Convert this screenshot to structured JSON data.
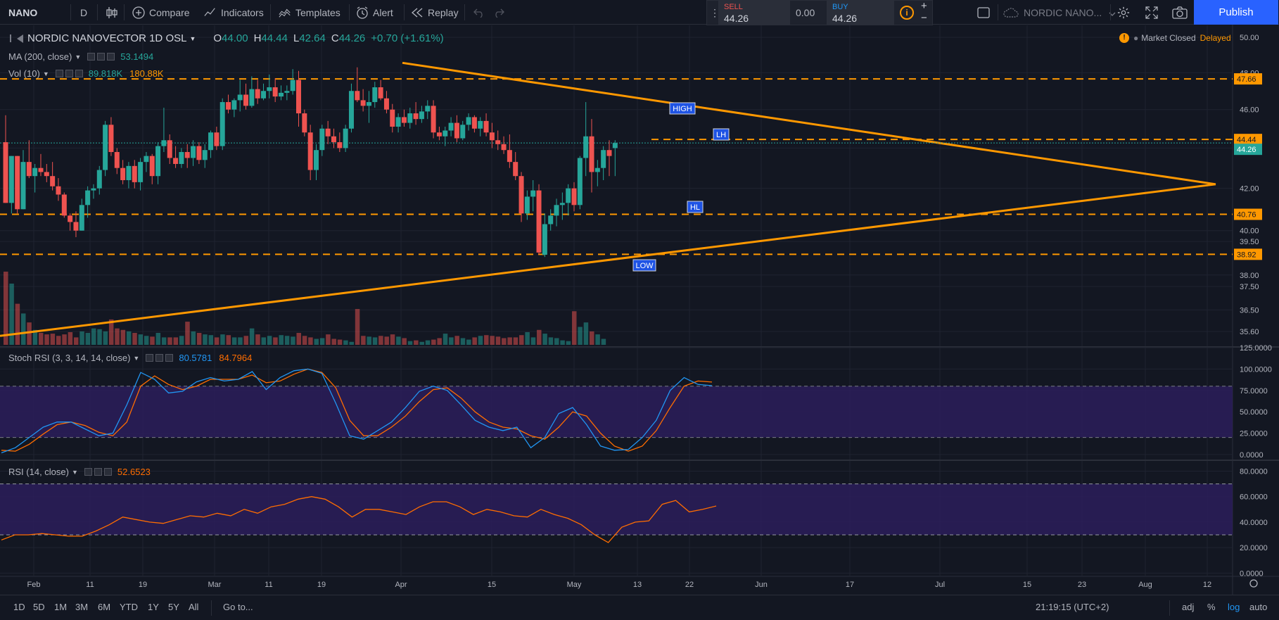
{
  "toolbar": {
    "symbol": "NANO",
    "interval": "D",
    "compare_label": "Compare",
    "indicators_label": "Indicators",
    "templates_label": "Templates",
    "alert_label": "Alert",
    "replay_label": "Replay",
    "sell_label": "SELL",
    "sell_price": "44.26",
    "spread": "0.00",
    "buy_label": "BUY",
    "buy_price": "44.26",
    "info_icon": "i",
    "plus": "+",
    "minus": "−",
    "layout_name": "NORDIC NANO...",
    "publish_label": "Publish",
    "icons": [
      "bar-style-icon",
      "compare-icon",
      "indicators-icon",
      "templates-icon",
      "alert-icon",
      "replay-icon",
      "undo-icon",
      "redo-icon",
      "drag-icon",
      "info-icon",
      "layout-icon",
      "cloud-icon",
      "gear-icon",
      "fullscreen-icon",
      "camera-icon"
    ]
  },
  "legend": {
    "name": "NORDIC NANOVECTOR",
    "interval": "1D",
    "exchange": "OSL",
    "o_label": "O",
    "o": "44.00",
    "h_label": "H",
    "h": "44.44",
    "l_label": "L",
    "l": "42.64",
    "c_label": "C",
    "c": "44.26",
    "change": "+0.70 (+1.61%)",
    "ma_label": "MA (200, close)",
    "ma_value": "53.1494",
    "vol_label": "Vol (10)",
    "vol_value1": "89.818K",
    "vol_value2": "180.88K",
    "stoch_label": "Stoch RSI (3, 3, 14, 14, close)",
    "stoch_k": "80.5781",
    "stoch_d": "84.7964",
    "rsi_label": "RSI (14, close)",
    "rsi_value": "52.6523",
    "market_warn": "!",
    "market_closed": "Market Closed",
    "delayed": "Delayed"
  },
  "colors": {
    "background": "#131722",
    "up": "#26a69a",
    "down": "#ef5350",
    "orange": "#ff9800",
    "stoch_k": "#2196f3",
    "stoch_d": "#ff6d00",
    "band": "#2b1d5a",
    "grid": "#1f2330",
    "axis_text": "#b2b5be"
  },
  "chart_data": [
    {
      "type": "candlestick",
      "name": "NORDIC NANOVECTOR 1D OSL",
      "yscale": "log",
      "ylim": [
        35.0,
        50.7
      ],
      "y_ticks": [
        "50.00",
        "48.00",
        "46.00",
        "44.00",
        "42.00",
        "40.00",
        "39.50",
        "38.00",
        "37.50",
        "36.50",
        "35.60"
      ],
      "x_ticks": [
        "Feb",
        "11",
        "19",
        "Mar",
        "11",
        "19",
        "Apr",
        "15",
        "May",
        "13",
        "22",
        "Jun",
        "17",
        "Jul",
        "15",
        "23",
        "Aug",
        "12"
      ],
      "candles": [
        {
          "o": 44.3,
          "h": 45.7,
          "l": 41.3,
          "c": 41.3
        },
        {
          "o": 41.3,
          "h": 43.6,
          "l": 40.8,
          "c": 43.6
        },
        {
          "o": 43.6,
          "h": 43.6,
          "l": 40.8,
          "c": 41.0
        },
        {
          "o": 41.0,
          "h": 43.9,
          "l": 41.0,
          "c": 43.3
        },
        {
          "o": 43.3,
          "h": 44.4,
          "l": 42.5,
          "c": 42.6
        },
        {
          "o": 42.6,
          "h": 43.2,
          "l": 41.8,
          "c": 43.0
        },
        {
          "o": 43.0,
          "h": 43.7,
          "l": 42.6,
          "c": 42.8
        },
        {
          "o": 42.8,
          "h": 43.2,
          "l": 42.3,
          "c": 42.6
        },
        {
          "o": 42.6,
          "h": 43.3,
          "l": 41.9,
          "c": 42.1
        },
        {
          "o": 42.1,
          "h": 42.5,
          "l": 41.4,
          "c": 41.7
        },
        {
          "o": 41.7,
          "h": 41.8,
          "l": 40.6,
          "c": 40.7
        },
        {
          "o": 40.7,
          "h": 40.8,
          "l": 40.0,
          "c": 40.4
        },
        {
          "o": 40.4,
          "h": 40.9,
          "l": 39.7,
          "c": 40.0
        },
        {
          "o": 40.0,
          "h": 41.5,
          "l": 40.0,
          "c": 41.2
        },
        {
          "o": 41.2,
          "h": 42.1,
          "l": 40.6,
          "c": 41.9
        },
        {
          "o": 41.9,
          "h": 42.2,
          "l": 41.5,
          "c": 42.0
        },
        {
          "o": 42.0,
          "h": 43.1,
          "l": 41.7,
          "c": 42.9
        },
        {
          "o": 42.9,
          "h": 45.4,
          "l": 42.6,
          "c": 45.2
        },
        {
          "o": 45.2,
          "h": 45.6,
          "l": 43.6,
          "c": 43.8
        },
        {
          "o": 43.8,
          "h": 44.0,
          "l": 42.7,
          "c": 43.0
        },
        {
          "o": 43.0,
          "h": 43.4,
          "l": 42.2,
          "c": 42.4
        },
        {
          "o": 42.4,
          "h": 43.3,
          "l": 42.0,
          "c": 43.1
        },
        {
          "o": 43.1,
          "h": 43.4,
          "l": 42.0,
          "c": 42.3
        },
        {
          "o": 42.3,
          "h": 43.5,
          "l": 41.9,
          "c": 43.3
        },
        {
          "o": 43.3,
          "h": 43.8,
          "l": 42.8,
          "c": 43.6
        },
        {
          "o": 43.6,
          "h": 43.7,
          "l": 42.2,
          "c": 42.6
        },
        {
          "o": 42.6,
          "h": 44.3,
          "l": 42.2,
          "c": 44.1
        },
        {
          "o": 44.1,
          "h": 46.1,
          "l": 43.8,
          "c": 44.4
        },
        {
          "o": 44.4,
          "h": 44.7,
          "l": 43.2,
          "c": 43.5
        },
        {
          "o": 43.5,
          "h": 44.1,
          "l": 43.0,
          "c": 43.2
        },
        {
          "o": 43.2,
          "h": 44.0,
          "l": 43.0,
          "c": 43.8
        },
        {
          "o": 43.8,
          "h": 44.2,
          "l": 43.0,
          "c": 43.5
        },
        {
          "o": 43.5,
          "h": 44.4,
          "l": 43.1,
          "c": 44.1
        },
        {
          "o": 44.1,
          "h": 44.3,
          "l": 43.2,
          "c": 43.4
        },
        {
          "o": 43.4,
          "h": 44.2,
          "l": 43.0,
          "c": 43.9
        },
        {
          "o": 43.9,
          "h": 44.9,
          "l": 43.5,
          "c": 44.8
        },
        {
          "o": 44.8,
          "h": 45.1,
          "l": 43.9,
          "c": 44.1
        },
        {
          "o": 44.1,
          "h": 46.6,
          "l": 43.9,
          "c": 46.4
        },
        {
          "o": 46.4,
          "h": 46.8,
          "l": 45.8,
          "c": 46.0
        },
        {
          "o": 46.0,
          "h": 46.6,
          "l": 45.6,
          "c": 46.5
        },
        {
          "o": 46.5,
          "h": 47.6,
          "l": 45.9,
          "c": 46.8
        },
        {
          "o": 46.8,
          "h": 47.4,
          "l": 46.0,
          "c": 46.2
        },
        {
          "o": 46.2,
          "h": 47.8,
          "l": 46.1,
          "c": 47.1
        },
        {
          "o": 47.1,
          "h": 47.6,
          "l": 46.3,
          "c": 46.6
        },
        {
          "o": 46.6,
          "h": 47.4,
          "l": 46.5,
          "c": 47.0
        },
        {
          "o": 47.0,
          "h": 47.9,
          "l": 46.6,
          "c": 47.2
        },
        {
          "o": 47.2,
          "h": 47.7,
          "l": 46.4,
          "c": 46.7
        },
        {
          "o": 46.7,
          "h": 47.3,
          "l": 46.5,
          "c": 46.9
        },
        {
          "o": 46.9,
          "h": 47.3,
          "l": 46.5,
          "c": 47.0
        },
        {
          "o": 47.0,
          "h": 48.2,
          "l": 46.8,
          "c": 47.6
        },
        {
          "o": 47.6,
          "h": 48.1,
          "l": 45.1,
          "c": 45.8
        },
        {
          "o": 45.8,
          "h": 46.0,
          "l": 44.6,
          "c": 44.8
        },
        {
          "o": 44.8,
          "h": 45.2,
          "l": 42.4,
          "c": 42.9
        },
        {
          "o": 42.9,
          "h": 44.2,
          "l": 42.4,
          "c": 43.9
        },
        {
          "o": 43.9,
          "h": 45.2,
          "l": 43.6,
          "c": 45.0
        },
        {
          "o": 45.0,
          "h": 45.4,
          "l": 44.2,
          "c": 44.6
        },
        {
          "o": 44.6,
          "h": 45.0,
          "l": 44.0,
          "c": 44.3
        },
        {
          "o": 44.3,
          "h": 44.8,
          "l": 43.8,
          "c": 44.0
        },
        {
          "o": 44.0,
          "h": 45.2,
          "l": 43.8,
          "c": 45.0
        },
        {
          "o": 45.0,
          "h": 47.4,
          "l": 44.8,
          "c": 47.0
        },
        {
          "o": 47.0,
          "h": 48.3,
          "l": 46.4,
          "c": 46.5
        },
        {
          "o": 46.5,
          "h": 47.1,
          "l": 45.9,
          "c": 46.2
        },
        {
          "o": 46.2,
          "h": 47.0,
          "l": 45.3,
          "c": 46.4
        },
        {
          "o": 46.4,
          "h": 47.5,
          "l": 46.1,
          "c": 47.2
        },
        {
          "o": 47.2,
          "h": 47.6,
          "l": 46.5,
          "c": 46.6
        },
        {
          "o": 46.6,
          "h": 47.0,
          "l": 45.8,
          "c": 46.0
        },
        {
          "o": 46.0,
          "h": 46.3,
          "l": 44.8,
          "c": 45.1
        },
        {
          "o": 45.1,
          "h": 45.8,
          "l": 44.8,
          "c": 45.6
        },
        {
          "o": 45.6,
          "h": 46.0,
          "l": 45.1,
          "c": 45.3
        },
        {
          "o": 45.3,
          "h": 46.1,
          "l": 45.0,
          "c": 45.8
        },
        {
          "o": 45.8,
          "h": 46.4,
          "l": 45.2,
          "c": 45.5
        },
        {
          "o": 45.5,
          "h": 46.2,
          "l": 45.3,
          "c": 45.9
        },
        {
          "o": 45.9,
          "h": 46.5,
          "l": 45.5,
          "c": 46.2
        },
        {
          "o": 46.2,
          "h": 46.5,
          "l": 44.5,
          "c": 44.8
        },
        {
          "o": 44.8,
          "h": 45.1,
          "l": 44.4,
          "c": 44.6
        },
        {
          "o": 44.6,
          "h": 45.1,
          "l": 44.1,
          "c": 44.9
        },
        {
          "o": 44.9,
          "h": 45.6,
          "l": 44.6,
          "c": 45.3
        },
        {
          "o": 45.3,
          "h": 45.7,
          "l": 44.3,
          "c": 44.5
        },
        {
          "o": 44.5,
          "h": 45.4,
          "l": 44.4,
          "c": 45.2
        },
        {
          "o": 45.2,
          "h": 45.8,
          "l": 44.9,
          "c": 45.6
        },
        {
          "o": 45.6,
          "h": 45.7,
          "l": 44.8,
          "c": 45.0
        },
        {
          "o": 45.0,
          "h": 45.6,
          "l": 44.6,
          "c": 45.4
        },
        {
          "o": 45.4,
          "h": 45.8,
          "l": 44.6,
          "c": 44.8
        },
        {
          "o": 44.8,
          "h": 45.3,
          "l": 44.0,
          "c": 44.4
        },
        {
          "o": 44.4,
          "h": 44.9,
          "l": 43.9,
          "c": 44.2
        },
        {
          "o": 44.2,
          "h": 44.6,
          "l": 43.7,
          "c": 43.9
        },
        {
          "o": 43.9,
          "h": 44.7,
          "l": 43.0,
          "c": 43.3
        },
        {
          "o": 43.3,
          "h": 43.8,
          "l": 42.4,
          "c": 42.6
        },
        {
          "o": 42.6,
          "h": 42.8,
          "l": 40.4,
          "c": 40.8
        },
        {
          "o": 40.8,
          "h": 41.9,
          "l": 40.5,
          "c": 41.6
        },
        {
          "o": 41.6,
          "h": 42.4,
          "l": 40.9,
          "c": 41.9
        },
        {
          "o": 41.9,
          "h": 42.2,
          "l": 38.9,
          "c": 39.0
        },
        {
          "o": 38.9,
          "h": 40.8,
          "l": 38.8,
          "c": 40.3
        },
        {
          "o": 40.3,
          "h": 41.0,
          "l": 40.0,
          "c": 40.7
        },
        {
          "o": 40.7,
          "h": 41.5,
          "l": 40.2,
          "c": 41.2
        },
        {
          "o": 41.2,
          "h": 41.8,
          "l": 40.5,
          "c": 41.3
        },
        {
          "o": 41.3,
          "h": 42.2,
          "l": 40.7,
          "c": 42.0
        },
        {
          "o": 42.0,
          "h": 42.3,
          "l": 40.9,
          "c": 41.2
        },
        {
          "o": 41.2,
          "h": 43.6,
          "l": 41.0,
          "c": 43.5
        },
        {
          "o": 43.5,
          "h": 46.4,
          "l": 42.6,
          "c": 44.6
        },
        {
          "o": 44.6,
          "h": 45.5,
          "l": 41.8,
          "c": 42.8
        },
        {
          "o": 42.8,
          "h": 43.4,
          "l": 42.1,
          "c": 43.0
        },
        {
          "o": 43.0,
          "h": 44.1,
          "l": 42.4,
          "c": 43.9
        },
        {
          "o": 43.9,
          "h": 44.4,
          "l": 42.6,
          "c": 43.6
        },
        {
          "o": 44.0,
          "h": 44.4,
          "l": 42.6,
          "c": 44.26
        }
      ],
      "levels": [
        {
          "value": 47.66,
          "label": "47.66"
        },
        {
          "value": 44.44,
          "label": "44.44"
        },
        {
          "value": 40.76,
          "label": "40.76"
        },
        {
          "value": 38.92,
          "label": "38.92"
        }
      ],
      "last_price": {
        "value": 44.26,
        "label": "44.26"
      },
      "annotations": [
        "HIGH",
        "LH",
        "HL",
        "LOW"
      ],
      "volume": [
        98,
        82,
        55,
        42,
        30,
        20,
        16,
        14,
        15,
        12,
        14,
        17,
        10,
        18,
        16,
        22,
        21,
        18,
        34,
        22,
        20,
        18,
        16,
        14,
        12,
        11,
        16,
        10,
        10,
        10,
        12,
        31,
        18,
        16,
        14,
        13,
        10,
        14,
        13,
        10,
        10,
        12,
        22,
        14,
        10,
        12,
        10,
        13,
        12,
        11,
        16,
        12,
        10,
        8,
        9,
        14,
        8,
        7,
        6,
        4,
        48,
        12,
        11,
        10,
        12,
        11,
        14,
        11,
        9,
        5,
        6,
        4,
        6,
        7,
        9,
        15,
        10,
        12,
        9,
        7,
        10,
        12,
        13,
        12,
        11,
        9,
        10,
        10,
        13,
        17,
        10,
        20,
        15,
        10,
        9,
        6,
        5,
        45,
        24,
        30,
        18,
        14,
        8
      ]
    },
    {
      "type": "line",
      "name": "Stoch RSI (3, 3, 14, 14, close)",
      "ylim": [
        -5,
        125
      ],
      "y_ticks": [
        "125.0000",
        "100.0000",
        "75.0000",
        "50.0000",
        "25.0000",
        "0.0000"
      ],
      "bands": [
        20,
        80
      ],
      "series": [
        {
          "name": "K",
          "values": [
            2,
            8,
            20,
            32,
            38,
            38,
            30,
            22,
            25,
            58,
            96,
            88,
            72,
            74,
            85,
            90,
            86,
            88,
            97,
            76,
            90,
            98,
            100,
            95,
            60,
            22,
            18,
            28,
            38,
            55,
            74,
            80,
            75,
            58,
            40,
            32,
            28,
            32,
            8,
            20,
            48,
            55,
            35,
            10,
            5,
            6,
            20,
            40,
            75,
            90,
            82,
            80.58
          ]
        },
        {
          "name": "D",
          "values": [
            5,
            4,
            12,
            24,
            35,
            38,
            34,
            26,
            22,
            38,
            80,
            92,
            82,
            76,
            80,
            88,
            88,
            88,
            93,
            84,
            86,
            94,
            100,
            96,
            78,
            40,
            22,
            22,
            32,
            45,
            62,
            76,
            78,
            66,
            50,
            38,
            32,
            30,
            22,
            18,
            32,
            50,
            45,
            25,
            10,
            4,
            10,
            28,
            55,
            80,
            86,
            84.8
          ]
        }
      ]
    },
    {
      "type": "line",
      "name": "RSI (14, close)",
      "ylim": [
        -2,
        88
      ],
      "y_ticks": [
        "80.0000",
        "60.0000",
        "40.0000",
        "20.0000",
        "0.0000"
      ],
      "bands": [
        30,
        70
      ],
      "series": [
        {
          "name": "RSI",
          "values": [
            26,
            30,
            30,
            31,
            30,
            29,
            29,
            33,
            38,
            44,
            42,
            40,
            39,
            42,
            45,
            44,
            47,
            45,
            50,
            47,
            52,
            54,
            58,
            60,
            58,
            52,
            44,
            50,
            50,
            48,
            46,
            52,
            56,
            56,
            52,
            46,
            50,
            48,
            45,
            44,
            50,
            46,
            43,
            38,
            30,
            24,
            36,
            40,
            41,
            54,
            57,
            48,
            50,
            52.65
          ]
        }
      ]
    }
  ],
  "time_axis": {
    "labels": [
      "Feb",
      "11",
      "19",
      "Mar",
      "11",
      "19",
      "Apr",
      "15",
      "May",
      "13",
      "22",
      "Jun",
      "17",
      "Jul",
      "15",
      "23",
      "Aug",
      "12"
    ]
  },
  "bottom": {
    "ranges": [
      "1D",
      "5D",
      "1M",
      "3M",
      "6M",
      "YTD",
      "1Y",
      "5Y",
      "All"
    ],
    "goto": "Go to...",
    "clock": "21:19:15 (UTC+2)",
    "adj": "adj",
    "pct": "%",
    "log": "log",
    "auto": "auto"
  }
}
